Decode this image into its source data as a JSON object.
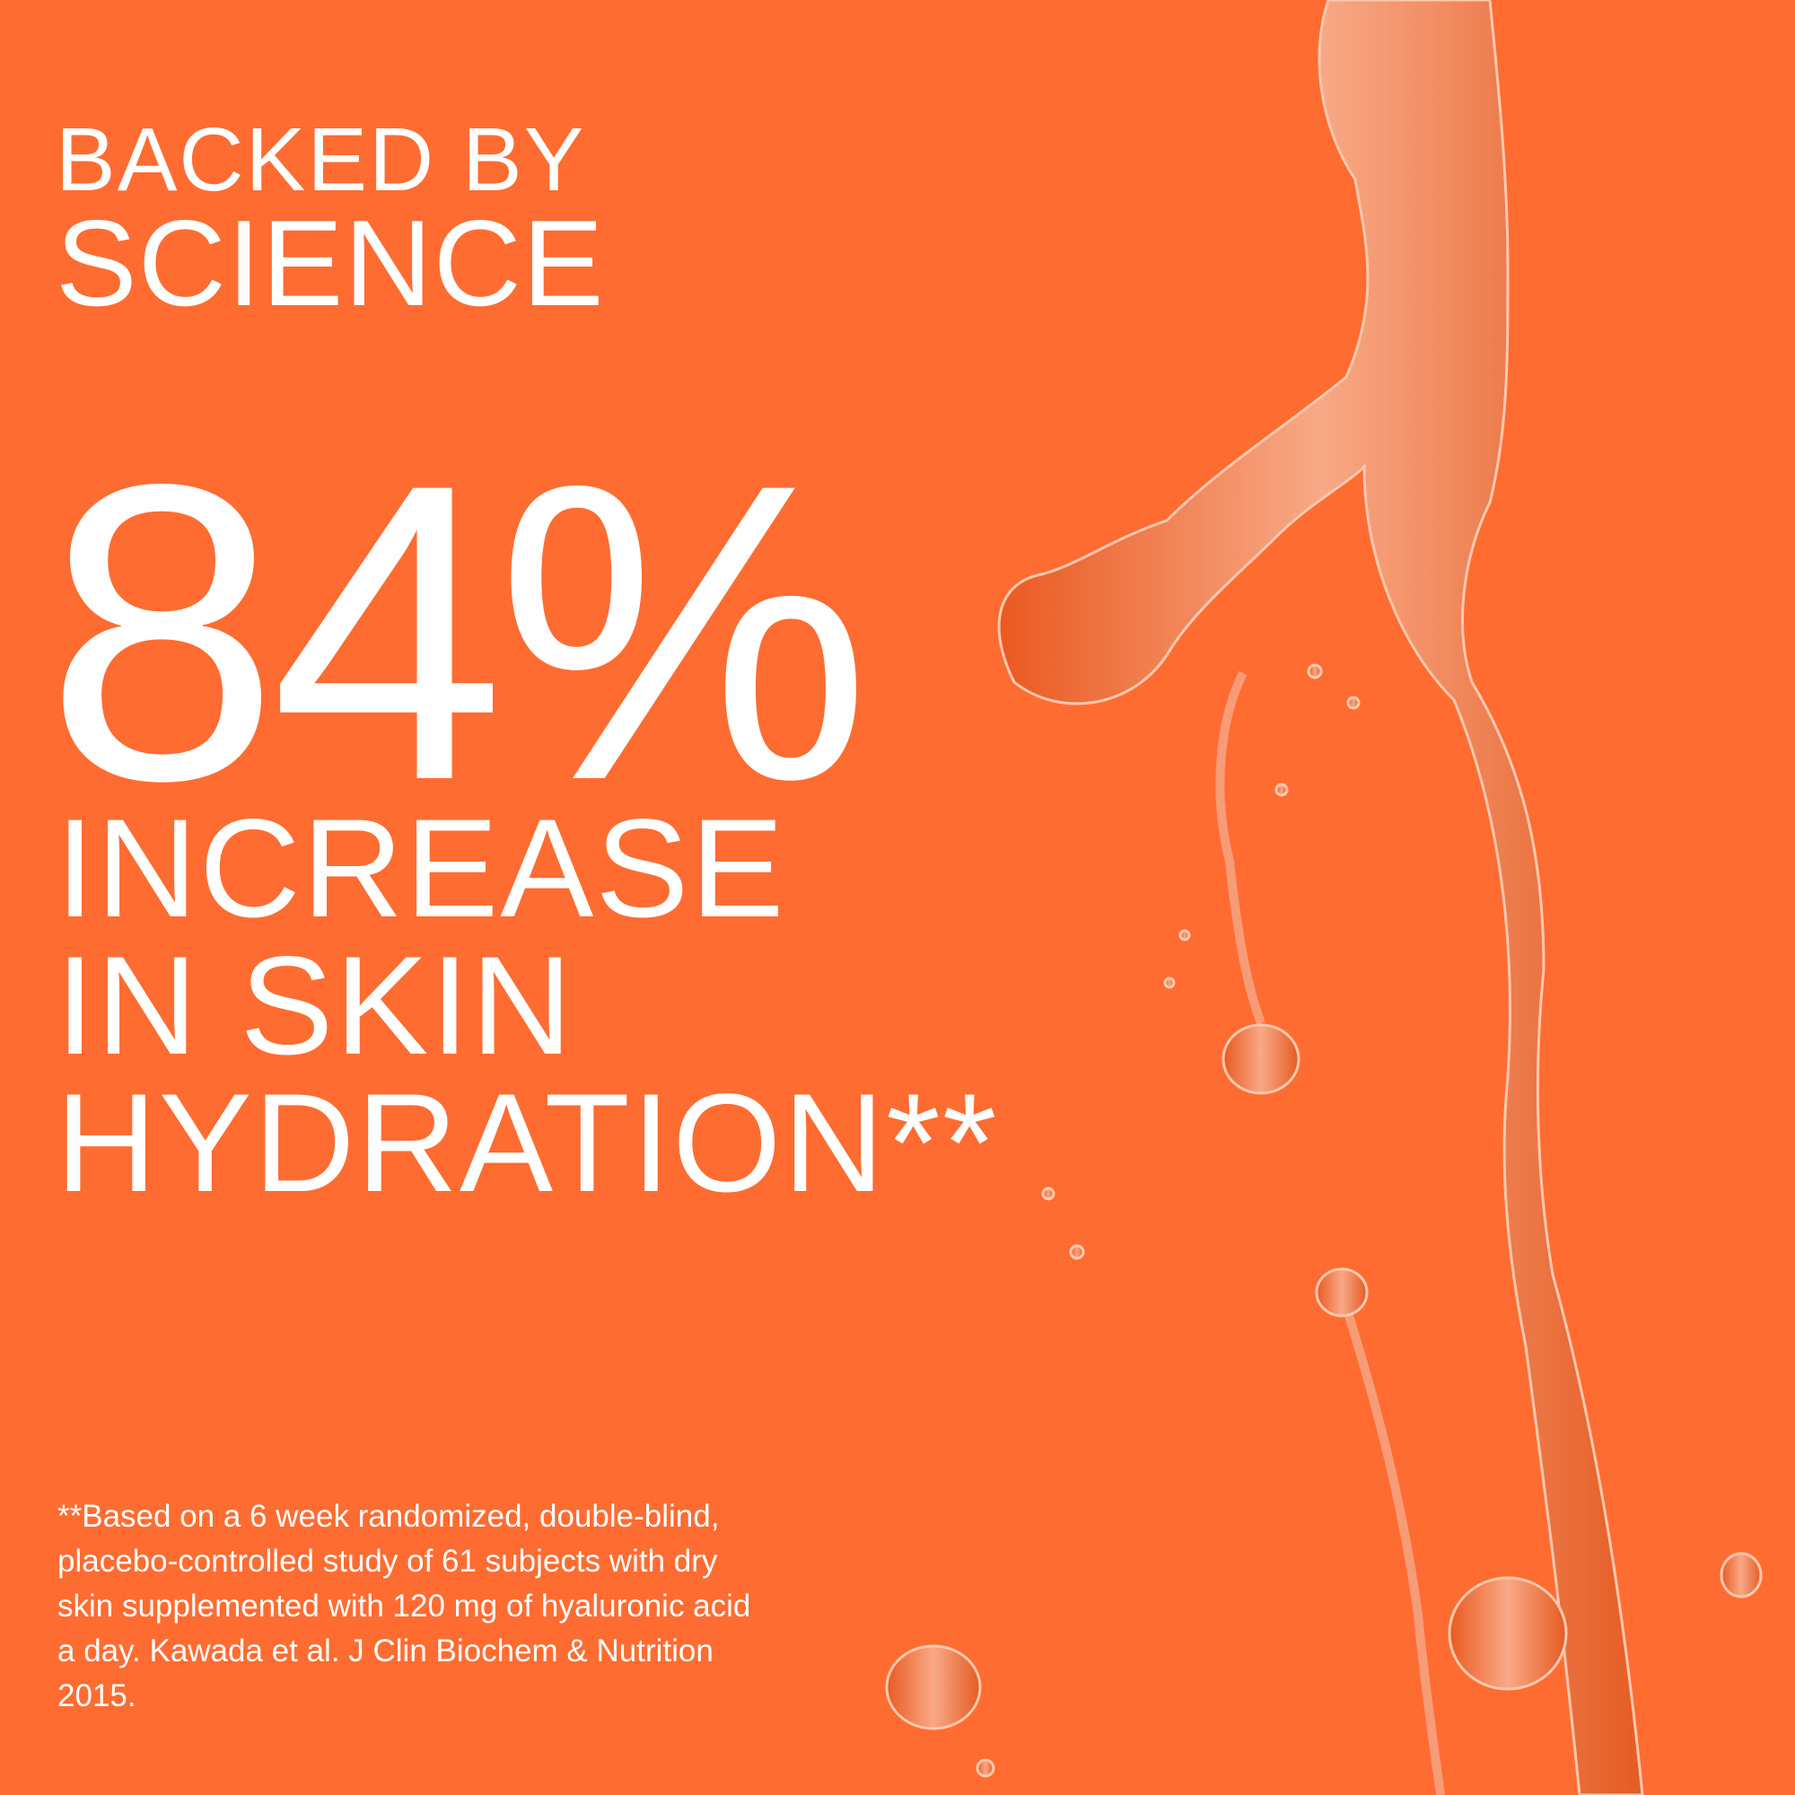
{
  "colors": {
    "background": "#FF6C31",
    "text": "#FFFFFF",
    "liquid": "#F5A27E"
  },
  "heading": {
    "line1": "BACKED BY",
    "line2": "SCIENCE"
  },
  "stat": {
    "value": "84%",
    "line1": "INCREASE",
    "line2": "IN SKIN",
    "line3": "HYDRATION**"
  },
  "footnote": {
    "lines": [
      "**Based on a 6 week randomized, double-blind,",
      "placebo-controlled study of 61 subjects with dry",
      "skin supplemented with 120 mg of hyaluronic acid",
      "a day. Kawada et al. J Clin Biochem & Nutrition",
      "2015."
    ]
  },
  "image": {
    "subject": "liquid-serum-splash"
  }
}
